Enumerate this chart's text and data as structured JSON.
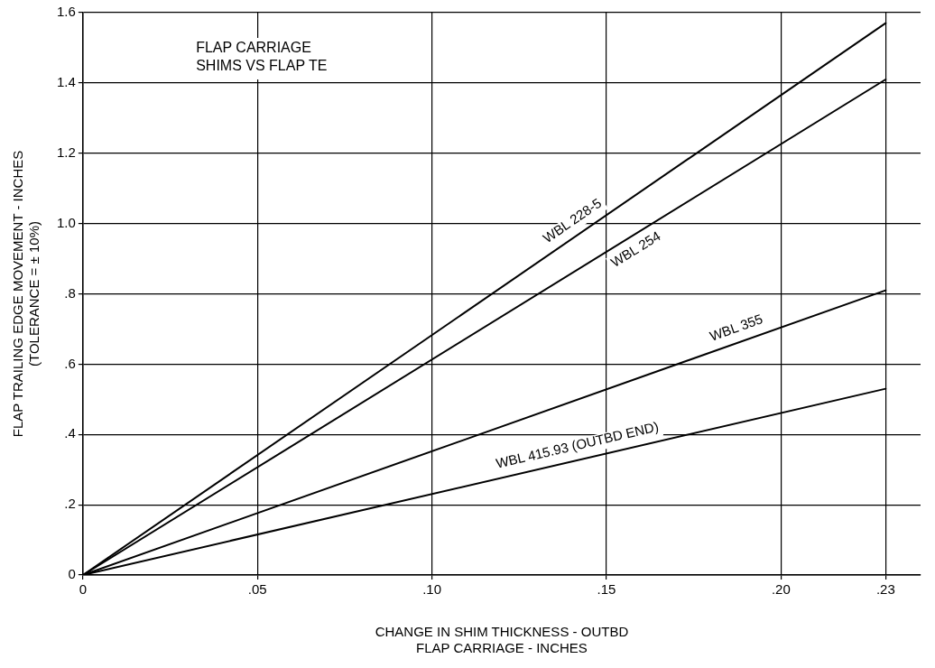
{
  "chart_data": {
    "type": "line",
    "title": "FLAP CARRIAGE\nSHIMS VS FLAP TE",
    "xlabel": "CHANGE IN SHIM THICKNESS - OUTBD\nFLAP CARRIAGE - INCHES",
    "ylabel": "FLAP TRAILING EDGE MOVEMENT - INCHES\n(TOLERANCE = ± 10%)",
    "x": [
      0,
      0.23
    ],
    "series": [
      {
        "name": "WBL 228-5",
        "color": "#000000",
        "values": [
          0,
          1.57
        ]
      },
      {
        "name": "WBL 254",
        "color": "#000000",
        "values": [
          0,
          1.41
        ]
      },
      {
        "name": "WBL 355",
        "color": "#000000",
        "values": [
          0,
          0.81
        ]
      },
      {
        "name": "WBL 415.93 (OUTBD END)",
        "color": "#000000",
        "values": [
          0,
          0.53
        ]
      }
    ],
    "xlim": [
      0,
      0.24
    ],
    "xticks": [
      0,
      {
        "value": 0.05,
        "label": ".05"
      },
      {
        "value": 0.1,
        "label": ".10"
      },
      {
        "value": 0.15,
        "label": ".15"
      },
      {
        "value": 0.2,
        "label": ".20"
      },
      {
        "value": 0.23,
        "label": ".23"
      }
    ],
    "ylim": [
      0,
      1.6
    ],
    "yticks": [
      0,
      {
        "value": 0.2,
        "label": ".2"
      },
      {
        "value": 0.4,
        "label": ".4"
      },
      {
        "value": 0.6,
        "label": ".6"
      },
      {
        "value": 0.8,
        "label": ".8"
      },
      {
        "value": 1.0,
        "label": "1.0"
      },
      {
        "value": 1.2,
        "label": "1.2"
      },
      {
        "value": 1.4,
        "label": "1.4"
      },
      {
        "value": 1.6,
        "label": "1.6"
      }
    ],
    "grid": true,
    "legend": false,
    "marker": "none",
    "line_style": "solid"
  }
}
